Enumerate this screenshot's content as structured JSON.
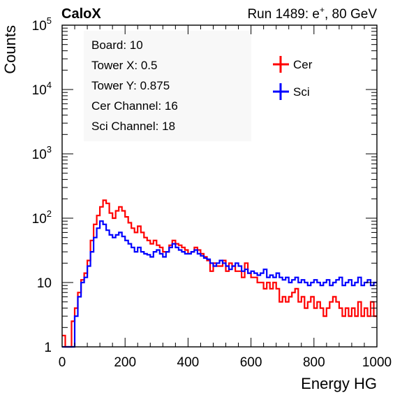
{
  "header": {
    "left": "CaloX",
    "right_prefix": "Run 1489: e",
    "right_sup": "+",
    "right_suffix": ", 80 GeV"
  },
  "info_box": {
    "lines": [
      "Board: 10",
      "Tower X: 0.5",
      "Tower Y: 0.875",
      "Cer Channel: 16",
      "Sci Channel: 18"
    ]
  },
  "chart_data": {
    "type": "line",
    "style": "step histogram",
    "xlabel": "Energy HG",
    "ylabel": "Counts",
    "xlim": [
      0,
      1000
    ],
    "ylim": [
      1,
      100000
    ],
    "y_scale": "log",
    "grid": false,
    "legend_position": "top-right",
    "x_ticks": [
      "0",
      "200",
      "400",
      "600",
      "800",
      "1000"
    ],
    "y_ticks": [
      {
        "value": 1,
        "base": "1",
        "exp": ""
      },
      {
        "value": 10,
        "base": "10",
        "exp": ""
      },
      {
        "value": 100,
        "base": "10",
        "exp": "2"
      },
      {
        "value": 1000,
        "base": "10",
        "exp": "3"
      },
      {
        "value": 10000,
        "base": "10",
        "exp": "4"
      },
      {
        "value": 100000,
        "base": "10",
        "exp": "5"
      }
    ],
    "x": [
      0,
      10,
      20,
      30,
      40,
      50,
      60,
      70,
      80,
      90,
      100,
      110,
      120,
      130,
      140,
      150,
      160,
      170,
      180,
      190,
      200,
      210,
      220,
      230,
      240,
      250,
      260,
      270,
      280,
      290,
      300,
      310,
      320,
      330,
      340,
      350,
      360,
      370,
      380,
      390,
      400,
      410,
      420,
      430,
      440,
      450,
      460,
      470,
      480,
      490,
      500,
      510,
      520,
      530,
      540,
      550,
      560,
      570,
      580,
      590,
      600,
      610,
      620,
      630,
      640,
      650,
      660,
      670,
      680,
      690,
      700,
      710,
      720,
      730,
      740,
      750,
      760,
      770,
      780,
      790,
      800,
      810,
      820,
      830,
      840,
      850,
      860,
      870,
      880,
      890,
      900,
      910,
      920,
      930,
      940,
      950,
      960,
      970,
      980,
      990
    ],
    "series": [
      {
        "name": "Cer",
        "color": "#ff0000",
        "values": [
          1.5,
          1,
          1,
          2.5,
          4,
          7,
          11,
          14,
          22,
          45,
          80,
          110,
          150,
          190,
          170,
          120,
          100,
          130,
          150,
          130,
          105,
          85,
          70,
          60,
          75,
          60,
          50,
          45,
          40,
          45,
          38,
          35,
          30,
          30,
          38,
          45,
          40,
          38,
          35,
          32,
          28,
          30,
          35,
          32,
          28,
          25,
          22,
          15,
          20,
          18,
          18,
          22,
          15,
          20,
          18,
          15,
          15,
          12,
          20,
          14,
          12,
          12,
          10,
          10,
          8,
          10,
          8,
          10,
          8,
          5,
          6,
          5,
          6,
          7,
          8,
          5,
          6,
          4,
          5,
          6,
          4,
          5,
          4,
          3,
          4,
          5,
          6,
          5,
          4,
          3,
          4,
          3,
          4,
          3,
          5,
          3,
          4,
          3,
          5,
          3
        ],
        "markers": [
          {
            "value": 1,
            "label": "1"
          }
        ]
      },
      {
        "name": "Sci",
        "color": "#0000ff",
        "values": [
          1,
          1,
          1,
          1,
          3,
          6,
          10,
          12,
          18,
          30,
          50,
          70,
          90,
          80,
          65,
          55,
          50,
          55,
          60,
          52,
          45,
          40,
          35,
          30,
          35,
          30,
          28,
          27,
          25,
          30,
          32,
          28,
          25,
          30,
          35,
          40,
          35,
          32,
          30,
          28,
          28,
          30,
          32,
          28,
          26,
          24,
          23,
          20,
          18,
          20,
          22,
          20,
          18,
          16,
          18,
          20,
          18,
          15,
          16,
          14,
          15,
          14,
          13,
          14,
          16,
          12,
          13,
          12,
          14,
          12,
          11,
          12,
          10,
          11,
          12,
          10,
          11,
          10,
          9,
          10,
          11,
          10,
          9,
          10,
          11,
          9,
          10,
          11,
          12,
          9,
          10,
          11,
          9,
          10,
          12,
          9,
          10,
          11,
          9,
          10
        ]
      }
    ]
  }
}
